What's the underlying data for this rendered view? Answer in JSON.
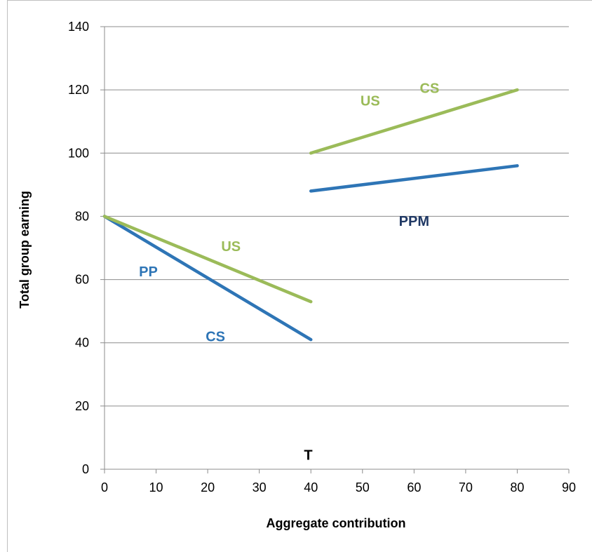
{
  "chart_data": {
    "type": "line",
    "xlabel": "Aggregate contribution",
    "ylabel": "Total group earning",
    "xlim": [
      0,
      90
    ],
    "ylim": [
      0,
      140
    ],
    "x_ticks": [
      "0",
      "10",
      "20",
      "30",
      "40",
      "50",
      "60",
      "70",
      "80",
      "90"
    ],
    "y_ticks": [
      "0",
      "20",
      "40",
      "60",
      "80",
      "100",
      "120",
      "140"
    ],
    "grid": "horizontal",
    "series": [
      {
        "color": "#2e75b6",
        "points": [
          [
            0,
            80
          ],
          [
            40,
            41
          ]
        ]
      },
      {
        "color": "#9bbb59",
        "points": [
          [
            0,
            80
          ],
          [
            40,
            53
          ]
        ]
      },
      {
        "color": "#2e75b6",
        "points": [
          [
            40,
            88
          ],
          [
            80,
            96
          ]
        ]
      },
      {
        "color": "#9bbb59",
        "points": [
          [
            40,
            100
          ],
          [
            80,
            120
          ]
        ]
      }
    ],
    "annotations": [
      {
        "text": "PP",
        "x": 8.5,
        "y": 61,
        "color": "#2e75b6"
      },
      {
        "text": "CS",
        "x": 21.5,
        "y": 40.5,
        "color": "#2e75b6"
      },
      {
        "text": "US",
        "x": 24.5,
        "y": 69,
        "color": "#9bbb59"
      },
      {
        "text": "US",
        "x": 51.5,
        "y": 115,
        "color": "#9bbb59"
      },
      {
        "text": "CS",
        "x": 63,
        "y": 119,
        "color": "#9bbb59"
      },
      {
        "text": "PPM",
        "x": 60,
        "y": 77,
        "color": "#1f3864"
      },
      {
        "text": "T",
        "x": 39.5,
        "y": 3,
        "color": "#000000"
      }
    ]
  }
}
